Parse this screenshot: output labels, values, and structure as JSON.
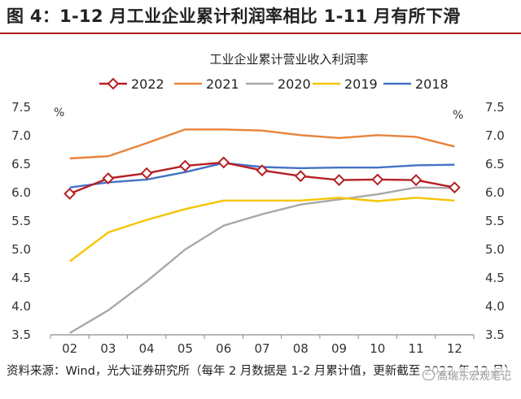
{
  "figure": {
    "title": "图 4：1-12 月工业企业累计利润率相比 1-11 月有所下滑",
    "source": "资料来源：Wind，光大证券研究所（每年 2 月数据是 1-2 月累计值，更新截至 2022 年 12 月）",
    "watermark": "高瑞东宏观笔记",
    "watermark_icon": "wechat-icon"
  },
  "chart_data": {
    "type": "line",
    "title": "工业企业累计营业收入利润率",
    "ylabel_left": "%",
    "ylabel_right": "%",
    "categories": [
      "02",
      "03",
      "04",
      "05",
      "06",
      "07",
      "08",
      "09",
      "10",
      "11",
      "12"
    ],
    "ylim": [
      3.5,
      7.5
    ],
    "yticks": [
      "3.5",
      "4.0",
      "4.5",
      "5.0",
      "5.5",
      "6.0",
      "6.5",
      "7.0",
      "7.5"
    ],
    "grid": false,
    "legend_position": "top",
    "series": [
      {
        "name": "2022",
        "color": "#b52025",
        "marker": "diamond",
        "values": [
          5.98,
          6.25,
          6.34,
          6.47,
          6.53,
          6.39,
          6.29,
          6.22,
          6.23,
          6.22,
          6.09
        ]
      },
      {
        "name": "2021",
        "color": "#e8833a",
        "marker": "none",
        "values": [
          6.6,
          6.64,
          6.87,
          7.11,
          7.11,
          7.09,
          7.01,
          6.96,
          7.01,
          6.98,
          6.81
        ]
      },
      {
        "name": "2020",
        "color": "#a8a8a8",
        "marker": "none",
        "values": [
          3.53,
          3.93,
          4.44,
          5.0,
          5.42,
          5.62,
          5.79,
          5.88,
          5.97,
          6.09,
          6.08
        ]
      },
      {
        "name": "2019",
        "color": "#f5c400",
        "marker": "none",
        "values": [
          4.79,
          5.3,
          5.52,
          5.71,
          5.86,
          5.86,
          5.86,
          5.91,
          5.85,
          5.91,
          5.86
        ]
      },
      {
        "name": "2018",
        "color": "#4472c4",
        "marker": "none",
        "values": [
          6.09,
          6.18,
          6.23,
          6.36,
          6.52,
          6.45,
          6.43,
          6.44,
          6.44,
          6.48,
          6.49
        ]
      }
    ]
  }
}
